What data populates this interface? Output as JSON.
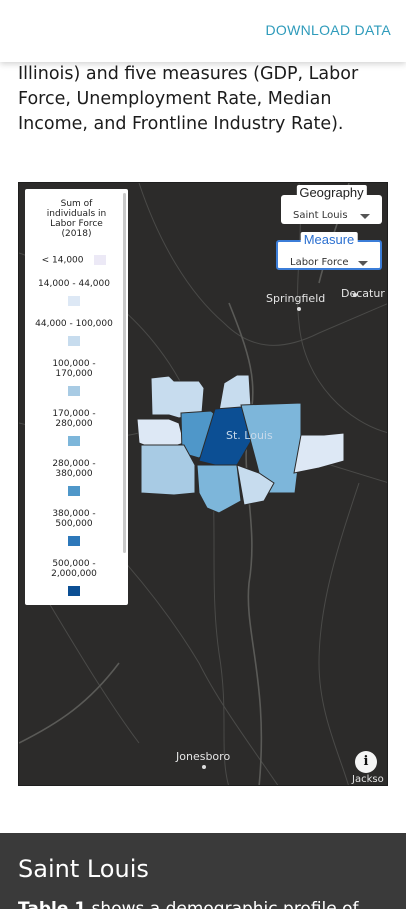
{
  "header": {
    "download_label": "DOWNLOAD DATA"
  },
  "intro": {
    "text": "Illinois) and five measures (GDP, Labor Force, Unemployment Rate, Median Income, and Frontline Industry Rate)."
  },
  "map": {
    "cities": {
      "springfield": "Springfield",
      "decatur": "Decatur",
      "st_louis": "St. Louis",
      "jonesboro": "Jonesboro",
      "jackson": "Jackso"
    },
    "legend": {
      "title": "Sum of individuals in Labor Force (2018)",
      "items": [
        {
          "label": "< 14,000",
          "color": "#ece9f6"
        },
        {
          "label": "14,000 - 44,000",
          "color": "#dde8f5"
        },
        {
          "label": "44,000 - 100,000",
          "color": "#c7dcee"
        },
        {
          "label": "100,000 - 170,000",
          "color": "#a8cbe4"
        },
        {
          "label": "170,000 - 280,000",
          "color": "#7db6da"
        },
        {
          "label": "280,000 - 380,000",
          "color": "#4f97c9"
        },
        {
          "label": "380,000 - 500,000",
          "color": "#2d78ba"
        },
        {
          "label": "500,000 - 2,000,000",
          "color": "#0c4f94"
        }
      ]
    },
    "geography": {
      "caption": "Geography",
      "value": "Saint Louis"
    },
    "measure": {
      "caption": "Measure",
      "value": "Labor Force"
    },
    "info_icon": "i"
  },
  "section": {
    "title": "Saint Louis",
    "body_bold": "Table 1",
    "body_rest": " shows a demographic profile of"
  }
}
